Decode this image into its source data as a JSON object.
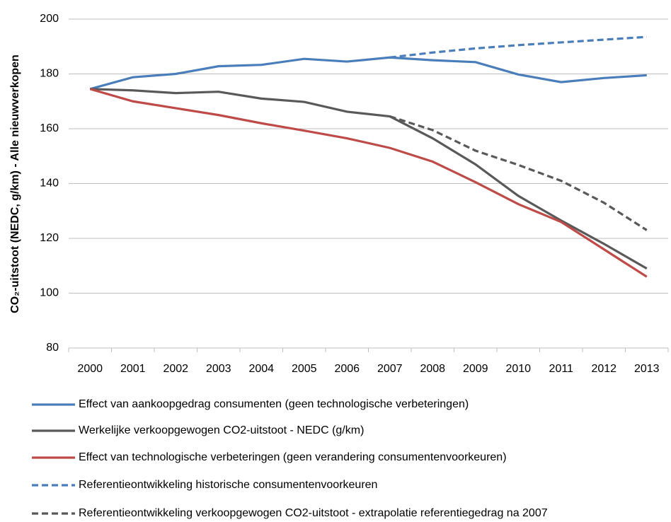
{
  "chart_data": {
    "type": "line",
    "ylabel": "CO₂-uitstoot (NEDC, g/km) - Alle nieuwverkopen",
    "categories": [
      "2000",
      "2001",
      "2002",
      "2003",
      "2004",
      "2005",
      "2006",
      "2007",
      "2008",
      "2009",
      "2010",
      "2011",
      "2012",
      "2013"
    ],
    "series": [
      {
        "name": "Effect van aankoopgedrag consumenten (geen technologische verbeteringen)",
        "color": "#4a7ebb",
        "linestyle": "solid",
        "values": [
          174.5,
          178.8,
          180,
          182.8,
          183.3,
          185.5,
          184.5,
          186,
          185,
          184.3,
          179.8,
          177,
          178.5,
          179.5
        ]
      },
      {
        "name": "Werkelijke verkoopgewogen CO2-uitstoot - NEDC (g/km)",
        "color": "#595959",
        "linestyle": "solid",
        "values": [
          174.5,
          174,
          173,
          173.5,
          171,
          169.8,
          166.2,
          164.5,
          156.5,
          147,
          135.5,
          126.5,
          118,
          109
        ]
      },
      {
        "name": "Effect van technologische verbeteringen (geen verandering consumentenvoorkeuren)",
        "color": "#be4b48",
        "linestyle": "solid",
        "values": [
          174.5,
          170,
          167.5,
          165,
          162,
          159.3,
          156.5,
          153,
          148,
          140.5,
          132.5,
          126,
          116,
          106
        ]
      },
      {
        "name": "Referentieontwikkeling historische consumentenvoorkeuren",
        "color": "#4a7ebb",
        "linestyle": "dashed",
        "values": [
          null,
          null,
          null,
          null,
          null,
          null,
          null,
          186,
          187.8,
          189.3,
          190.5,
          191.5,
          192.5,
          193.5
        ]
      },
      {
        "name": "Referentieontwikkeling verkoopgewogen CO2-uitstoot - extrapolatie referentiegedrag na 2007",
        "color": "#595959",
        "linestyle": "dashed",
        "values": [
          null,
          null,
          null,
          null,
          null,
          null,
          null,
          164.5,
          159.5,
          152,
          146.8,
          141,
          133,
          123
        ]
      }
    ],
    "ylim": [
      80,
      200
    ],
    "yticks": [
      80,
      100,
      120,
      140,
      160,
      180,
      200
    ],
    "grid": true
  }
}
